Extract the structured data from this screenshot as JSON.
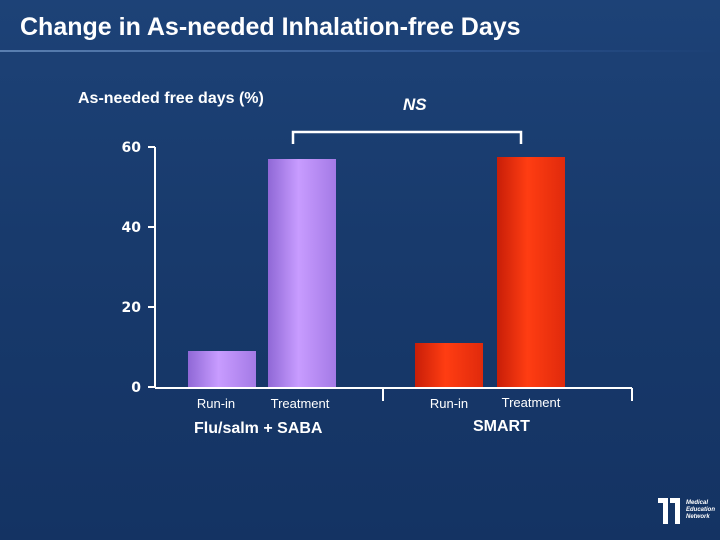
{
  "slide": {
    "title": "Change in As-needed Inhalation-free Days",
    "logo_lines": [
      "Medical",
      "Education",
      "Network"
    ]
  },
  "chart_data": {
    "type": "bar",
    "ylabel": "As-needed free days (%)",
    "ylim": [
      0,
      60
    ],
    "yticks": [
      0,
      20,
      40,
      60
    ],
    "groups": [
      {
        "name": "Flu/salm + SABA",
        "categories": [
          "Run-in",
          "Treatment"
        ],
        "values": [
          9,
          57
        ],
        "color": "#b28bf2"
      },
      {
        "name": "SMART",
        "categories": [
          "Run-in",
          "Treatment"
        ],
        "values": [
          11,
          57.5
        ],
        "color": "#ff3a12"
      }
    ],
    "annotation": "NS"
  }
}
